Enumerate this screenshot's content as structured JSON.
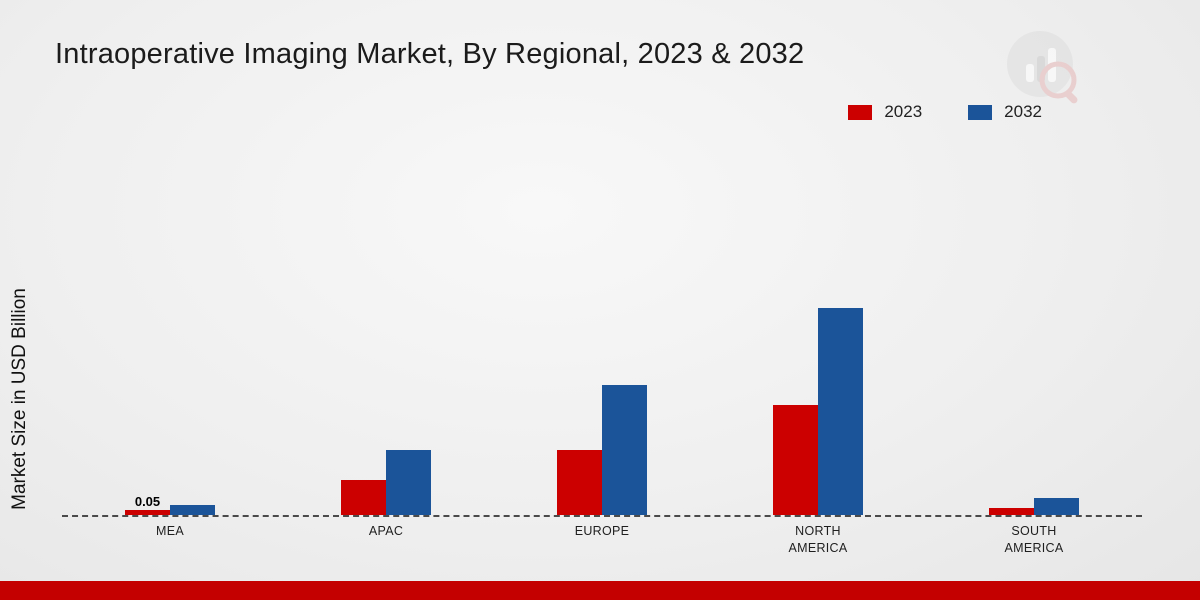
{
  "page": {
    "title": "Intraoperative Imaging Market, By Regional, 2023 & 2032",
    "ylabel": "Market Size in USD Billion"
  },
  "colors": {
    "series_2023": "#cc0000",
    "series_2032": "#1b5499",
    "footer_bar": "#c40000",
    "baseline": "#4a4a4a"
  },
  "legend": {
    "items": [
      {
        "label": "2023",
        "color": "#cc0000"
      },
      {
        "label": "2032",
        "color": "#1b5499"
      }
    ]
  },
  "watermark": {
    "icon": "bar-chart-magnifier-logo"
  },
  "chart_data": {
    "type": "bar",
    "title": "Intraoperative Imaging Market, By Regional, 2023 & 2032",
    "xlabel": "",
    "ylabel": "Market Size in USD Billion",
    "categories": [
      "MEA",
      "APAC",
      "EUROPE",
      "NORTH AMERICA",
      "SOUTH AMERICA"
    ],
    "series": [
      {
        "name": "2023",
        "color": "#cc0000",
        "values": [
          0.05,
          0.35,
          0.65,
          1.1,
          0.07
        ]
      },
      {
        "name": "2032",
        "color": "#1b5499",
        "values": [
          0.1,
          0.65,
          1.3,
          2.07,
          0.17
        ]
      }
    ],
    "data_labels": [
      {
        "category": "MEA",
        "series": "2023",
        "text": "0.05"
      }
    ],
    "ylim": [
      0,
      2.2
    ],
    "grid": false,
    "legend_position": "top-right",
    "baseline_style": "dashed"
  }
}
